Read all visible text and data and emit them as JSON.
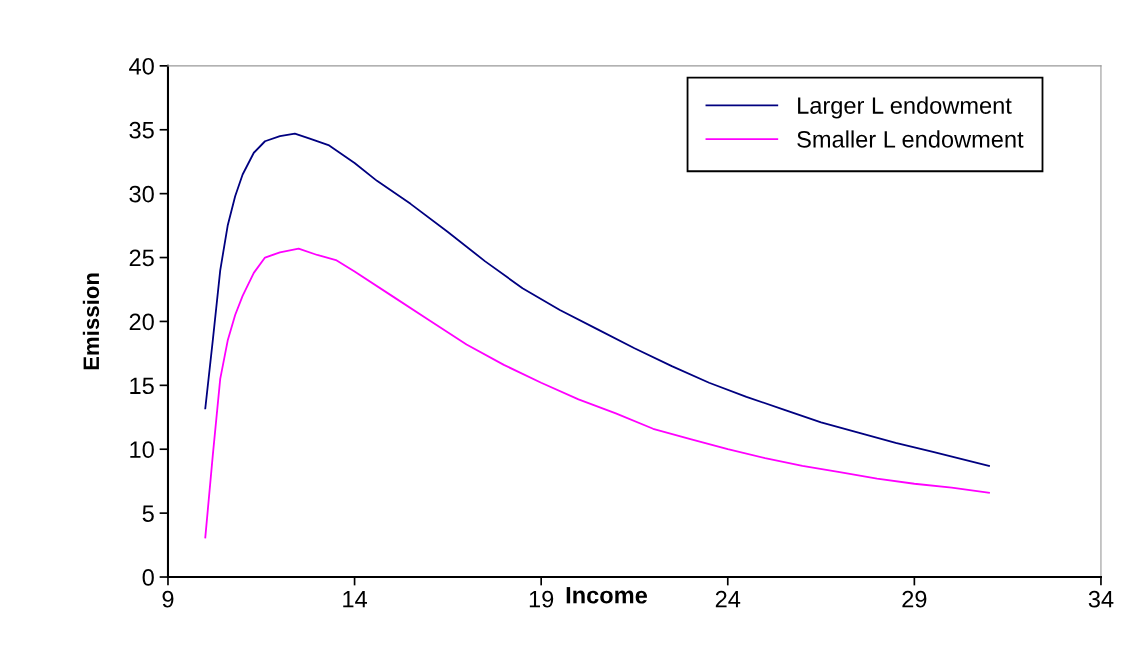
{
  "chart_data": {
    "type": "line",
    "xlabel": "Income",
    "ylabel": "Emission",
    "xlim": [
      9,
      34
    ],
    "xticks": [
      9,
      14,
      19,
      24,
      29,
      34
    ],
    "ylim": [
      0,
      40
    ],
    "yticks": [
      0,
      5,
      10,
      15,
      20,
      25,
      30,
      35,
      40
    ],
    "grid": false,
    "legend": "top right",
    "marker": "none",
    "line_style": "solid",
    "series": [
      {
        "name": "Larger L endowment",
        "color": "#000080",
        "x": [
          10.0,
          10.2,
          10.4,
          10.6,
          10.8,
          11.0,
          11.3,
          11.6,
          12.0,
          12.4,
          12.8,
          13.3,
          14,
          14.6,
          15.5,
          16.5,
          17.5,
          18.5,
          19.5,
          20.5,
          21.5,
          22.5,
          23.5,
          24.5,
          25.5,
          26.5,
          27.5,
          28.5,
          29.5,
          31
        ],
        "values": [
          13.2,
          18.5,
          24,
          27.5,
          29.8,
          31.5,
          33.2,
          34.1,
          34.5,
          34.7,
          34.3,
          33.8,
          32.4,
          31.0,
          29.2,
          27.0,
          24.7,
          22.6,
          20.9,
          19.4,
          17.9,
          16.5,
          15.2,
          14.1,
          13.1,
          12.1,
          11.3,
          10.5,
          9.8,
          8.7
        ]
      },
      {
        "name": "Smaller L endowment",
        "color": "#ff00ff",
        "x": [
          10.0,
          10.2,
          10.4,
          10.6,
          10.8,
          11.0,
          11.3,
          11.6,
          12.0,
          12.5,
          13.0,
          13.5,
          14,
          15,
          16,
          17,
          18,
          19,
          20,
          21,
          22,
          23,
          24,
          25,
          26,
          27,
          28,
          29,
          30,
          31
        ],
        "values": [
          3.1,
          9.5,
          15.5,
          18.5,
          20.5,
          22.0,
          23.8,
          25.0,
          25.4,
          25.7,
          25.2,
          24.8,
          23.9,
          22.0,
          20.1,
          18.2,
          16.6,
          15.2,
          13.9,
          12.8,
          11.6,
          10.8,
          10.0,
          9.3,
          8.7,
          8.2,
          7.7,
          7.3,
          7.0,
          6.6
        ]
      }
    ]
  }
}
